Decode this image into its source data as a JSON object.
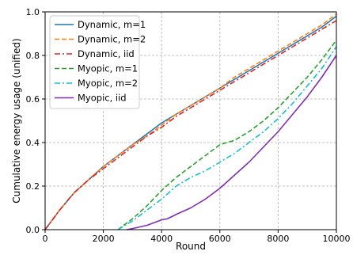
{
  "chart_data": {
    "type": "line",
    "title": "",
    "xlabel": "Round",
    "ylabel": "Cumulative energy usage (unified)",
    "xlim": [
      0,
      10000
    ],
    "ylim": [
      0,
      1.0
    ],
    "xticks": [
      0,
      2000,
      4000,
      6000,
      8000,
      10000
    ],
    "yticks": [
      0.0,
      0.2,
      0.4,
      0.6,
      0.8,
      1.0
    ],
    "xtick_labels": [
      "0",
      "2000",
      "4000",
      "6000",
      "8000",
      "10000"
    ],
    "ytick_labels": [
      "0.0",
      "0.2",
      "0.4",
      "0.6",
      "0.8",
      "1.0"
    ],
    "grid": true,
    "legend_position": "top-left",
    "series": [
      {
        "name": "Dynamic, m=1",
        "color": "#1f77b4",
        "dash": "solid",
        "x": [
          0,
          500,
          1000,
          1500,
          2000,
          2500,
          3000,
          3500,
          4000,
          4500,
          5000,
          5500,
          6000,
          6500,
          7000,
          7500,
          8000,
          8500,
          9000,
          9500,
          10000
        ],
        "y": [
          0.0,
          0.09,
          0.17,
          0.23,
          0.29,
          0.34,
          0.39,
          0.44,
          0.49,
          0.53,
          0.57,
          0.61,
          0.65,
          0.69,
          0.73,
          0.77,
          0.81,
          0.85,
          0.89,
          0.93,
          0.98
        ]
      },
      {
        "name": "Dynamic, m=2",
        "color": "#ff7f0e",
        "dash": "dashed",
        "x": [
          0,
          500,
          1000,
          1500,
          2000,
          2500,
          3000,
          3500,
          4000,
          4500,
          5000,
          5500,
          6000,
          6500,
          7000,
          7500,
          8000,
          8500,
          9000,
          9500,
          10000
        ],
        "y": [
          0.0,
          0.09,
          0.17,
          0.23,
          0.29,
          0.34,
          0.39,
          0.43,
          0.48,
          0.53,
          0.57,
          0.61,
          0.65,
          0.7,
          0.74,
          0.78,
          0.82,
          0.86,
          0.9,
          0.94,
          0.99
        ]
      },
      {
        "name": "Dynamic, iid",
        "color": "#d62728",
        "dash": "dashdot",
        "x": [
          0,
          500,
          1000,
          1500,
          2000,
          2500,
          3000,
          3500,
          4000,
          4500,
          5000,
          5500,
          6000,
          6500,
          7000,
          7500,
          8000,
          8500,
          9000,
          9500,
          10000
        ],
        "y": [
          0.0,
          0.09,
          0.17,
          0.23,
          0.28,
          0.33,
          0.38,
          0.43,
          0.47,
          0.52,
          0.56,
          0.6,
          0.64,
          0.68,
          0.72,
          0.76,
          0.8,
          0.84,
          0.88,
          0.92,
          0.96
        ]
      },
      {
        "name": "Myopic, m=1",
        "color": "#2ca02c",
        "dash": "dashed",
        "x": [
          2500,
          3000,
          3500,
          4000,
          4500,
          5000,
          5500,
          6000,
          6500,
          7000,
          7500,
          8000,
          8500,
          9000,
          9500,
          10000
        ],
        "y": [
          0.0,
          0.05,
          0.11,
          0.18,
          0.24,
          0.29,
          0.34,
          0.39,
          0.41,
          0.45,
          0.5,
          0.56,
          0.63,
          0.7,
          0.78,
          0.87
        ]
      },
      {
        "name": "Myopic, m=2",
        "color": "#17becf",
        "dash": "dashdot",
        "x": [
          2500,
          3000,
          3500,
          4000,
          4500,
          5000,
          5500,
          6000,
          6500,
          7000,
          7500,
          8000,
          8500,
          9000,
          9500,
          10000
        ],
        "y": [
          0.0,
          0.04,
          0.09,
          0.14,
          0.2,
          0.24,
          0.27,
          0.31,
          0.35,
          0.4,
          0.45,
          0.51,
          0.58,
          0.66,
          0.74,
          0.84
        ]
      },
      {
        "name": "Myopic, iid",
        "color": "#7f2fb0",
        "dash": "solid",
        "x": [
          2800,
          3000,
          3500,
          4000,
          4200,
          4500,
          5000,
          5500,
          6000,
          6500,
          7000,
          7500,
          8000,
          8500,
          9000,
          9500,
          10000
        ],
        "y": [
          0.0,
          0.005,
          0.02,
          0.045,
          0.05,
          0.07,
          0.1,
          0.14,
          0.19,
          0.25,
          0.31,
          0.38,
          0.45,
          0.53,
          0.61,
          0.7,
          0.8
        ]
      }
    ]
  }
}
